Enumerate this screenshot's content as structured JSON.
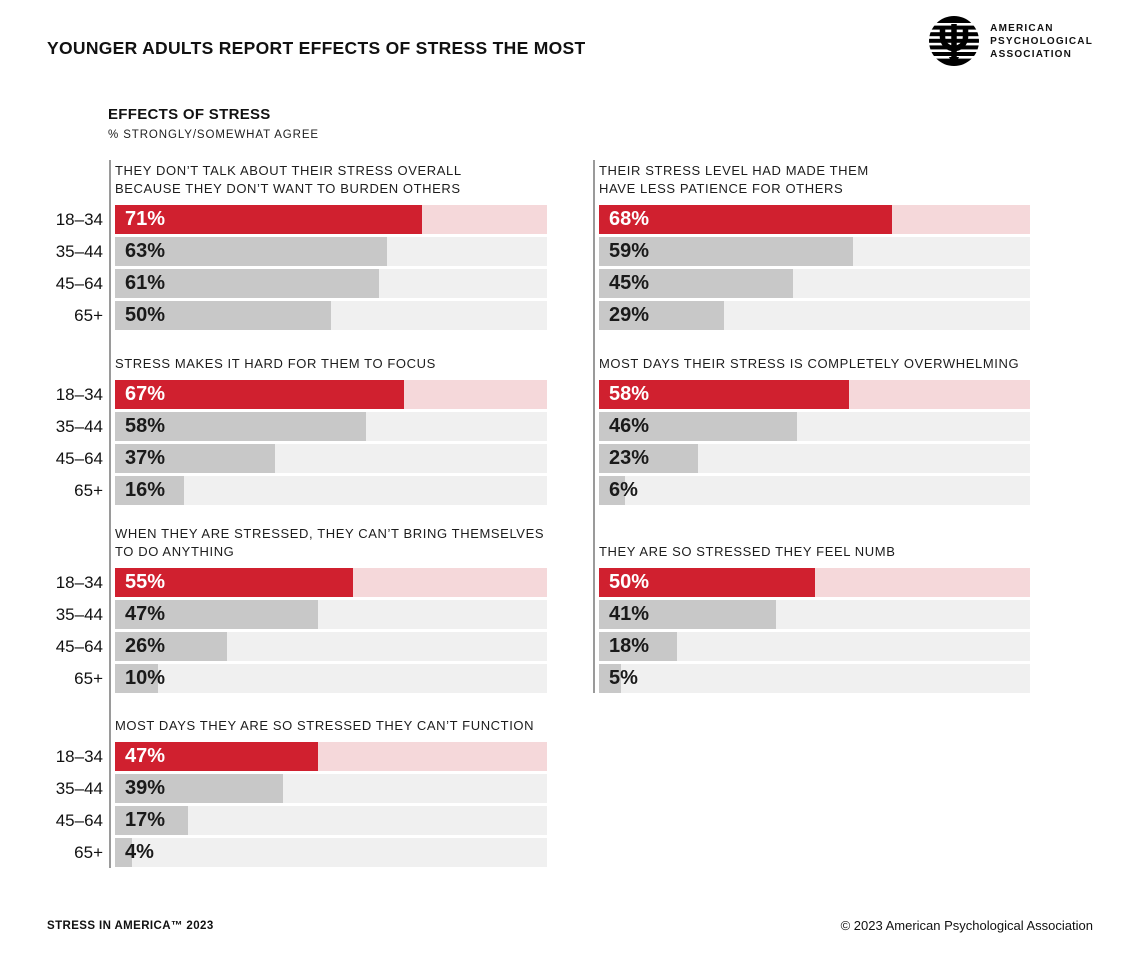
{
  "page": {
    "title": "YOUNGER ADULTS REPORT EFFECTS OF STRESS THE MOST",
    "section_heading": "EFFECTS OF STRESS",
    "section_subheading": "% STRONGLY/SOMEWHAT AGREE",
    "footer_left": "STRESS IN AMERICA™ 2023",
    "footer_right": "© 2023 American Psychological Association"
  },
  "logo": {
    "line1": "AMERICAN",
    "line2": "PSYCHOLOGICAL",
    "line3": "ASSOCIATION"
  },
  "colors": {
    "highlight_bar": "#D0202F",
    "highlight_track": "#F5D8DA",
    "bar": "#C8C8C8",
    "track": "#F0F0F0",
    "axis_line": "#9A9A9A",
    "value_on_highlight": "#FFFFFF",
    "value_on_bar": "#1A1A1A"
  },
  "chart_data": {
    "type": "bar",
    "orientation": "horizontal",
    "title": "EFFECTS OF STRESS",
    "subtitle": "% STRONGLY/SOMEWHAT AGREE",
    "categories": [
      "18–34",
      "35–44",
      "45–64",
      "65+"
    ],
    "highlight_category": "18–34",
    "xlim": [
      0,
      100
    ],
    "unit": "%",
    "legend": "none",
    "grid": false,
    "charts": [
      {
        "column": "left",
        "title_lines": [
          "THEY DON’T TALK ABOUT THEIR STRESS OVERALL",
          "BECAUSE THEY DON’T WANT TO BURDEN OTHERS"
        ],
        "values": [
          71,
          63,
          61,
          50
        ]
      },
      {
        "column": "right",
        "title_lines": [
          "THEIR STRESS LEVEL HAD MADE THEM",
          "HAVE LESS PATIENCE FOR OTHERS"
        ],
        "values": [
          68,
          59,
          45,
          29
        ]
      },
      {
        "column": "left",
        "title_lines": [
          "STRESS MAKES IT HARD FOR THEM TO FOCUS"
        ],
        "values": [
          67,
          58,
          37,
          16
        ]
      },
      {
        "column": "right",
        "title_lines": [
          "MOST DAYS THEIR STRESS IS COMPLETELY OVERWHELMING"
        ],
        "values": [
          58,
          46,
          23,
          6
        ]
      },
      {
        "column": "left",
        "title_lines": [
          "WHEN THEY ARE STRESSED, THEY CAN’T BRING THEMSELVES",
          "TO DO ANYTHING"
        ],
        "values": [
          55,
          47,
          26,
          10
        ]
      },
      {
        "column": "right",
        "title_lines": [
          "THEY ARE SO STRESSED THEY FEEL NUMB"
        ],
        "values": [
          50,
          41,
          18,
          5
        ]
      },
      {
        "column": "left",
        "title_lines": [
          "MOST DAYS THEY ARE SO STRESSED THEY CAN’T FUNCTION"
        ],
        "values": [
          47,
          39,
          17,
          4
        ]
      }
    ]
  }
}
